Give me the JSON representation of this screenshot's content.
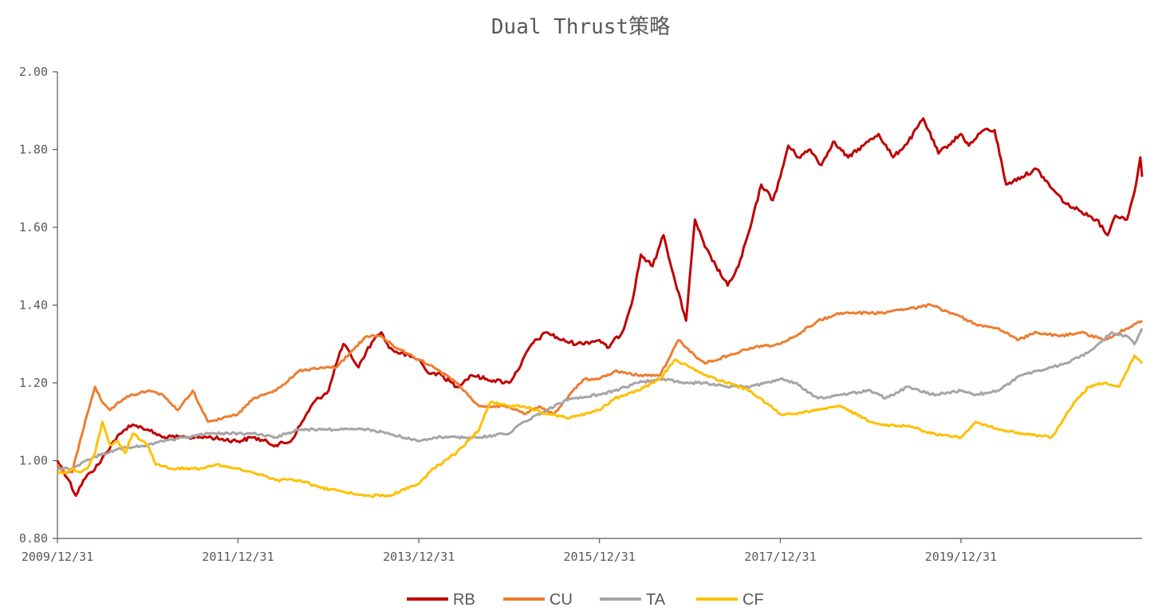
{
  "chart_data": {
    "type": "line",
    "title": "Dual Thrust策略",
    "xlabel": "",
    "ylabel": "",
    "ylim": [
      0.8,
      2.0
    ],
    "y_ticks": [
      "0.80",
      "1.00",
      "1.20",
      "1.40",
      "1.60",
      "1.80",
      "2.00"
    ],
    "x_ticks": [
      "2009/12/31",
      "2011/12/31",
      "2013/12/31",
      "2015/12/31",
      "2017/12/31",
      "2019/12/31"
    ],
    "xlim": [
      "2009/12/31",
      "2022/01/01"
    ],
    "grid": false,
    "legend_position": "bottom",
    "series": [
      {
        "name": "RB",
        "color": "#C00000",
        "points": [
          [
            "2009/12/31",
            1.0
          ],
          [
            "2010/02/15",
            0.95
          ],
          [
            "2010/03/15",
            0.91
          ],
          [
            "2010/04/15",
            0.95
          ],
          [
            "2010/05/15",
            0.97
          ],
          [
            "2010/06/15",
            0.99
          ],
          [
            "2010/07/15",
            1.02
          ],
          [
            "2010/08/15",
            1.05
          ],
          [
            "2010/09/15",
            1.07
          ],
          [
            "2010/10/15",
            1.09
          ],
          [
            "2010/11/15",
            1.09
          ],
          [
            "2010/12/31",
            1.08
          ],
          [
            "2011/03/01",
            1.06
          ],
          [
            "2011/06/01",
            1.06
          ],
          [
            "2011/09/01",
            1.06
          ],
          [
            "2011/12/31",
            1.05
          ],
          [
            "2012/03/01",
            1.06
          ],
          [
            "2012/06/01",
            1.04
          ],
          [
            "2012/08/01",
            1.05
          ],
          [
            "2012/09/15",
            1.1
          ],
          [
            "2012/11/01",
            1.15
          ],
          [
            "2012/12/31",
            1.18
          ],
          [
            "2013/02/01",
            1.25
          ],
          [
            "2013/03/01",
            1.3
          ],
          [
            "2013/04/01",
            1.27
          ],
          [
            "2013/05/01",
            1.24
          ],
          [
            "2013/06/01",
            1.28
          ],
          [
            "2013/07/01",
            1.31
          ],
          [
            "2013/08/01",
            1.33
          ],
          [
            "2013/09/01",
            1.29
          ],
          [
            "2013/10/01",
            1.28
          ],
          [
            "2013/12/31",
            1.26
          ],
          [
            "2014/02/01",
            1.23
          ],
          [
            "2014/04/01",
            1.22
          ],
          [
            "2014/06/01",
            1.19
          ],
          [
            "2014/08/01",
            1.22
          ],
          [
            "2014/10/01",
            1.21
          ],
          [
            "2014/12/31",
            1.2
          ],
          [
            "2015/02/01",
            1.23
          ],
          [
            "2015/04/01",
            1.3
          ],
          [
            "2015/06/01",
            1.33
          ],
          [
            "2015/08/01",
            1.31
          ],
          [
            "2015/10/01",
            1.3
          ],
          [
            "2015/12/31",
            1.31
          ],
          [
            "2016/02/01",
            1.29
          ],
          [
            "2016/04/01",
            1.33
          ],
          [
            "2016/05/15",
            1.42
          ],
          [
            "2016/06/15",
            1.53
          ],
          [
            "2016/08/01",
            1.5
          ],
          [
            "2016/09/15",
            1.58
          ],
          [
            "2016/11/01",
            1.46
          ],
          [
            "2016/12/15",
            1.36
          ],
          [
            "2017/01/20",
            1.62
          ],
          [
            "2017/03/01",
            1.55
          ],
          [
            "2017/04/15",
            1.5
          ],
          [
            "2017/06/01",
            1.45
          ],
          [
            "2017/07/15",
            1.5
          ],
          [
            "2017/09/01",
            1.6
          ],
          [
            "2017/10/15",
            1.71
          ],
          [
            "2017/12/01",
            1.67
          ],
          [
            "2017/12/31",
            1.73
          ],
          [
            "2018/02/01",
            1.81
          ],
          [
            "2018/03/15",
            1.78
          ],
          [
            "2018/05/01",
            1.8
          ],
          [
            "2018/06/15",
            1.76
          ],
          [
            "2018/08/01",
            1.82
          ],
          [
            "2018/10/01",
            1.78
          ],
          [
            "2018/12/01",
            1.81
          ],
          [
            "2019/02/01",
            1.84
          ],
          [
            "2019/04/01",
            1.78
          ],
          [
            "2019/06/01",
            1.82
          ],
          [
            "2019/08/01",
            1.88
          ],
          [
            "2019/10/01",
            1.79
          ],
          [
            "2019/12/31",
            1.84
          ],
          [
            "2020/02/01",
            1.81
          ],
          [
            "2020/04/01",
            1.85
          ],
          [
            "2020/05/15",
            1.85
          ],
          [
            "2020/07/01",
            1.71
          ],
          [
            "2020/09/01",
            1.73
          ],
          [
            "2020/11/01",
            1.75
          ],
          [
            "2021/01/01",
            1.7
          ],
          [
            "2021/03/01",
            1.66
          ],
          [
            "2021/05/01",
            1.64
          ],
          [
            "2021/07/01",
            1.62
          ],
          [
            "2021/08/15",
            1.58
          ],
          [
            "2021/09/15",
            1.63
          ],
          [
            "2021/11/01",
            1.62
          ],
          [
            "2021/12/01",
            1.69
          ],
          [
            "2021/12/25",
            1.78
          ],
          [
            "2022/01/01",
            1.73
          ]
        ]
      },
      {
        "name": "CU",
        "color": "#ED7D31",
        "points": [
          [
            "2009/12/31",
            0.99
          ],
          [
            "2010/02/01",
            0.97
          ],
          [
            "2010/03/01",
            0.97
          ],
          [
            "2010/04/01",
            1.05
          ],
          [
            "2010/05/01",
            1.12
          ],
          [
            "2010/06/01",
            1.19
          ],
          [
            "2010/07/01",
            1.15
          ],
          [
            "2010/08/01",
            1.13
          ],
          [
            "2010/09/01",
            1.15
          ],
          [
            "2010/10/01",
            1.16
          ],
          [
            "2010/11/01",
            1.17
          ],
          [
            "2010/12/31",
            1.18
          ],
          [
            "2011/03/01",
            1.17
          ],
          [
            "2011/05/01",
            1.13
          ],
          [
            "2011/07/01",
            1.18
          ],
          [
            "2011/09/01",
            1.1
          ],
          [
            "2011/12/31",
            1.12
          ],
          [
            "2012/03/01",
            1.16
          ],
          [
            "2012/06/01",
            1.18
          ],
          [
            "2012/09/01",
            1.23
          ],
          [
            "2012/12/01",
            1.24
          ],
          [
            "2013/02/01",
            1.24
          ],
          [
            "2013/04/01",
            1.28
          ],
          [
            "2013/06/01",
            1.32
          ],
          [
            "2013/08/01",
            1.32
          ],
          [
            "2013/10/01",
            1.29
          ],
          [
            "2013/12/31",
            1.26
          ],
          [
            "2014/03/01",
            1.24
          ],
          [
            "2014/06/01",
            1.2
          ],
          [
            "2014/09/01",
            1.14
          ],
          [
            "2014/12/31",
            1.14
          ],
          [
            "2015/03/01",
            1.12
          ],
          [
            "2015/05/01",
            1.14
          ],
          [
            "2015/07/01",
            1.12
          ],
          [
            "2015/09/01",
            1.17
          ],
          [
            "2015/11/01",
            1.21
          ],
          [
            "2015/12/31",
            1.21
          ],
          [
            "2016/03/01",
            1.23
          ],
          [
            "2016/06/01",
            1.22
          ],
          [
            "2016/09/01",
            1.22
          ],
          [
            "2016/11/15",
            1.31
          ],
          [
            "2016/12/31",
            1.28
          ],
          [
            "2017/03/01",
            1.25
          ],
          [
            "2017/06/01",
            1.27
          ],
          [
            "2017/09/01",
            1.29
          ],
          [
            "2017/12/31",
            1.3
          ],
          [
            "2018/03/01",
            1.32
          ],
          [
            "2018/06/01",
            1.36
          ],
          [
            "2018/09/01",
            1.38
          ],
          [
            "2018/12/31",
            1.38
          ],
          [
            "2019/03/01",
            1.38
          ],
          [
            "2019/06/01",
            1.39
          ],
          [
            "2019/09/01",
            1.4
          ],
          [
            "2019/12/31",
            1.37
          ],
          [
            "2020/03/01",
            1.35
          ],
          [
            "2020/06/01",
            1.34
          ],
          [
            "2020/08/15",
            1.31
          ],
          [
            "2020/11/01",
            1.33
          ],
          [
            "2021/02/01",
            1.32
          ],
          [
            "2021/05/01",
            1.33
          ],
          [
            "2021/08/01",
            1.31
          ],
          [
            "2021/11/01",
            1.34
          ],
          [
            "2022/01/01",
            1.36
          ]
        ]
      },
      {
        "name": "TA",
        "color": "#A5A5A5",
        "points": [
          [
            "2009/12/31",
            0.98
          ],
          [
            "2010/03/01",
            0.98
          ],
          [
            "2010/06/01",
            1.01
          ],
          [
            "2010/09/01",
            1.03
          ],
          [
            "2010/12/31",
            1.04
          ],
          [
            "2011/03/01",
            1.05
          ],
          [
            "2011/06/01",
            1.06
          ],
          [
            "2011/09/01",
            1.07
          ],
          [
            "2011/12/31",
            1.07
          ],
          [
            "2012/03/01",
            1.07
          ],
          [
            "2012/06/01",
            1.06
          ],
          [
            "2012/09/01",
            1.08
          ],
          [
            "2012/12/01",
            1.08
          ],
          [
            "2013/03/01",
            1.08
          ],
          [
            "2013/06/01",
            1.08
          ],
          [
            "2013/09/01",
            1.07
          ],
          [
            "2013/12/31",
            1.05
          ],
          [
            "2014/03/01",
            1.06
          ],
          [
            "2014/06/01",
            1.06
          ],
          [
            "2014/09/01",
            1.06
          ],
          [
            "2014/12/31",
            1.07
          ],
          [
            "2015/03/01",
            1.1
          ],
          [
            "2015/06/01",
            1.13
          ],
          [
            "2015/09/01",
            1.16
          ],
          [
            "2015/12/31",
            1.17
          ],
          [
            "2016/03/01",
            1.18
          ],
          [
            "2016/06/01",
            1.2
          ],
          [
            "2016/09/01",
            1.21
          ],
          [
            "2016/12/31",
            1.2
          ],
          [
            "2017/03/01",
            1.2
          ],
          [
            "2017/06/01",
            1.19
          ],
          [
            "2017/09/01",
            1.19
          ],
          [
            "2017/12/31",
            1.21
          ],
          [
            "2018/03/01",
            1.2
          ],
          [
            "2018/06/01",
            1.16
          ],
          [
            "2018/09/01",
            1.17
          ],
          [
            "2018/12/31",
            1.18
          ],
          [
            "2019/03/01",
            1.16
          ],
          [
            "2019/06/01",
            1.19
          ],
          [
            "2019/09/01",
            1.17
          ],
          [
            "2019/12/31",
            1.18
          ],
          [
            "2020/03/01",
            1.17
          ],
          [
            "2020/06/01",
            1.18
          ],
          [
            "2020/09/01",
            1.22
          ],
          [
            "2020/12/31",
            1.24
          ],
          [
            "2021/03/01",
            1.25
          ],
          [
            "2021/06/01",
            1.28
          ],
          [
            "2021/09/01",
            1.33
          ],
          [
            "2021/11/01",
            1.32
          ],
          [
            "2021/12/01",
            1.3
          ],
          [
            "2022/01/01",
            1.34
          ]
        ]
      },
      {
        "name": "CF",
        "color": "#FFC000",
        "points": [
          [
            "2009/12/31",
            0.97
          ],
          [
            "2010/02/01",
            0.97
          ],
          [
            "2010/03/01",
            0.98
          ],
          [
            "2010/04/01",
            0.97
          ],
          [
            "2010/05/01",
            0.98
          ],
          [
            "2010/06/01",
            1.02
          ],
          [
            "2010/07/01",
            1.1
          ],
          [
            "2010/08/01",
            1.04
          ],
          [
            "2010/09/01",
            1.05
          ],
          [
            "2010/10/01",
            1.02
          ],
          [
            "2010/11/01",
            1.07
          ],
          [
            "2010/12/31",
            1.04
          ],
          [
            "2011/02/01",
            0.99
          ],
          [
            "2011/04/01",
            0.98
          ],
          [
            "2011/06/01",
            0.98
          ],
          [
            "2011/08/01",
            0.98
          ],
          [
            "2011/10/01",
            0.99
          ],
          [
            "2011/12/31",
            0.98
          ],
          [
            "2012/03/01",
            0.97
          ],
          [
            "2012/06/01",
            0.95
          ],
          [
            "2012/09/01",
            0.95
          ],
          [
            "2012/12/01",
            0.93
          ],
          [
            "2013/03/01",
            0.92
          ],
          [
            "2013/06/01",
            0.91
          ],
          [
            "2013/09/01",
            0.91
          ],
          [
            "2013/12/31",
            0.94
          ],
          [
            "2014/03/01",
            0.98
          ],
          [
            "2014/06/01",
            1.02
          ],
          [
            "2014/09/01",
            1.08
          ],
          [
            "2014/10/15",
            1.15
          ],
          [
            "2014/12/31",
            1.14
          ],
          [
            "2015/03/01",
            1.14
          ],
          [
            "2015/06/01",
            1.12
          ],
          [
            "2015/09/01",
            1.11
          ],
          [
            "2015/12/31",
            1.13
          ],
          [
            "2016/03/01",
            1.16
          ],
          [
            "2016/06/01",
            1.18
          ],
          [
            "2016/09/01",
            1.21
          ],
          [
            "2016/11/01",
            1.26
          ],
          [
            "2016/12/31",
            1.24
          ],
          [
            "2017/03/01",
            1.22
          ],
          [
            "2017/06/01",
            1.2
          ],
          [
            "2017/09/01",
            1.18
          ],
          [
            "2017/12/31",
            1.12
          ],
          [
            "2018/03/01",
            1.12
          ],
          [
            "2018/06/01",
            1.13
          ],
          [
            "2018/09/01",
            1.14
          ],
          [
            "2018/12/31",
            1.1
          ],
          [
            "2019/03/01",
            1.09
          ],
          [
            "2019/06/01",
            1.09
          ],
          [
            "2019/09/01",
            1.07
          ],
          [
            "2019/12/31",
            1.06
          ],
          [
            "2020/03/01",
            1.1
          ],
          [
            "2020/06/01",
            1.08
          ],
          [
            "2020/09/01",
            1.07
          ],
          [
            "2020/12/31",
            1.06
          ],
          [
            "2021/02/01",
            1.09
          ],
          [
            "2021/04/01",
            1.15
          ],
          [
            "2021/06/01",
            1.19
          ],
          [
            "2021/08/01",
            1.2
          ],
          [
            "2021/10/01",
            1.19
          ],
          [
            "2021/12/01",
            1.27
          ],
          [
            "2022/01/01",
            1.25
          ]
        ]
      }
    ]
  }
}
